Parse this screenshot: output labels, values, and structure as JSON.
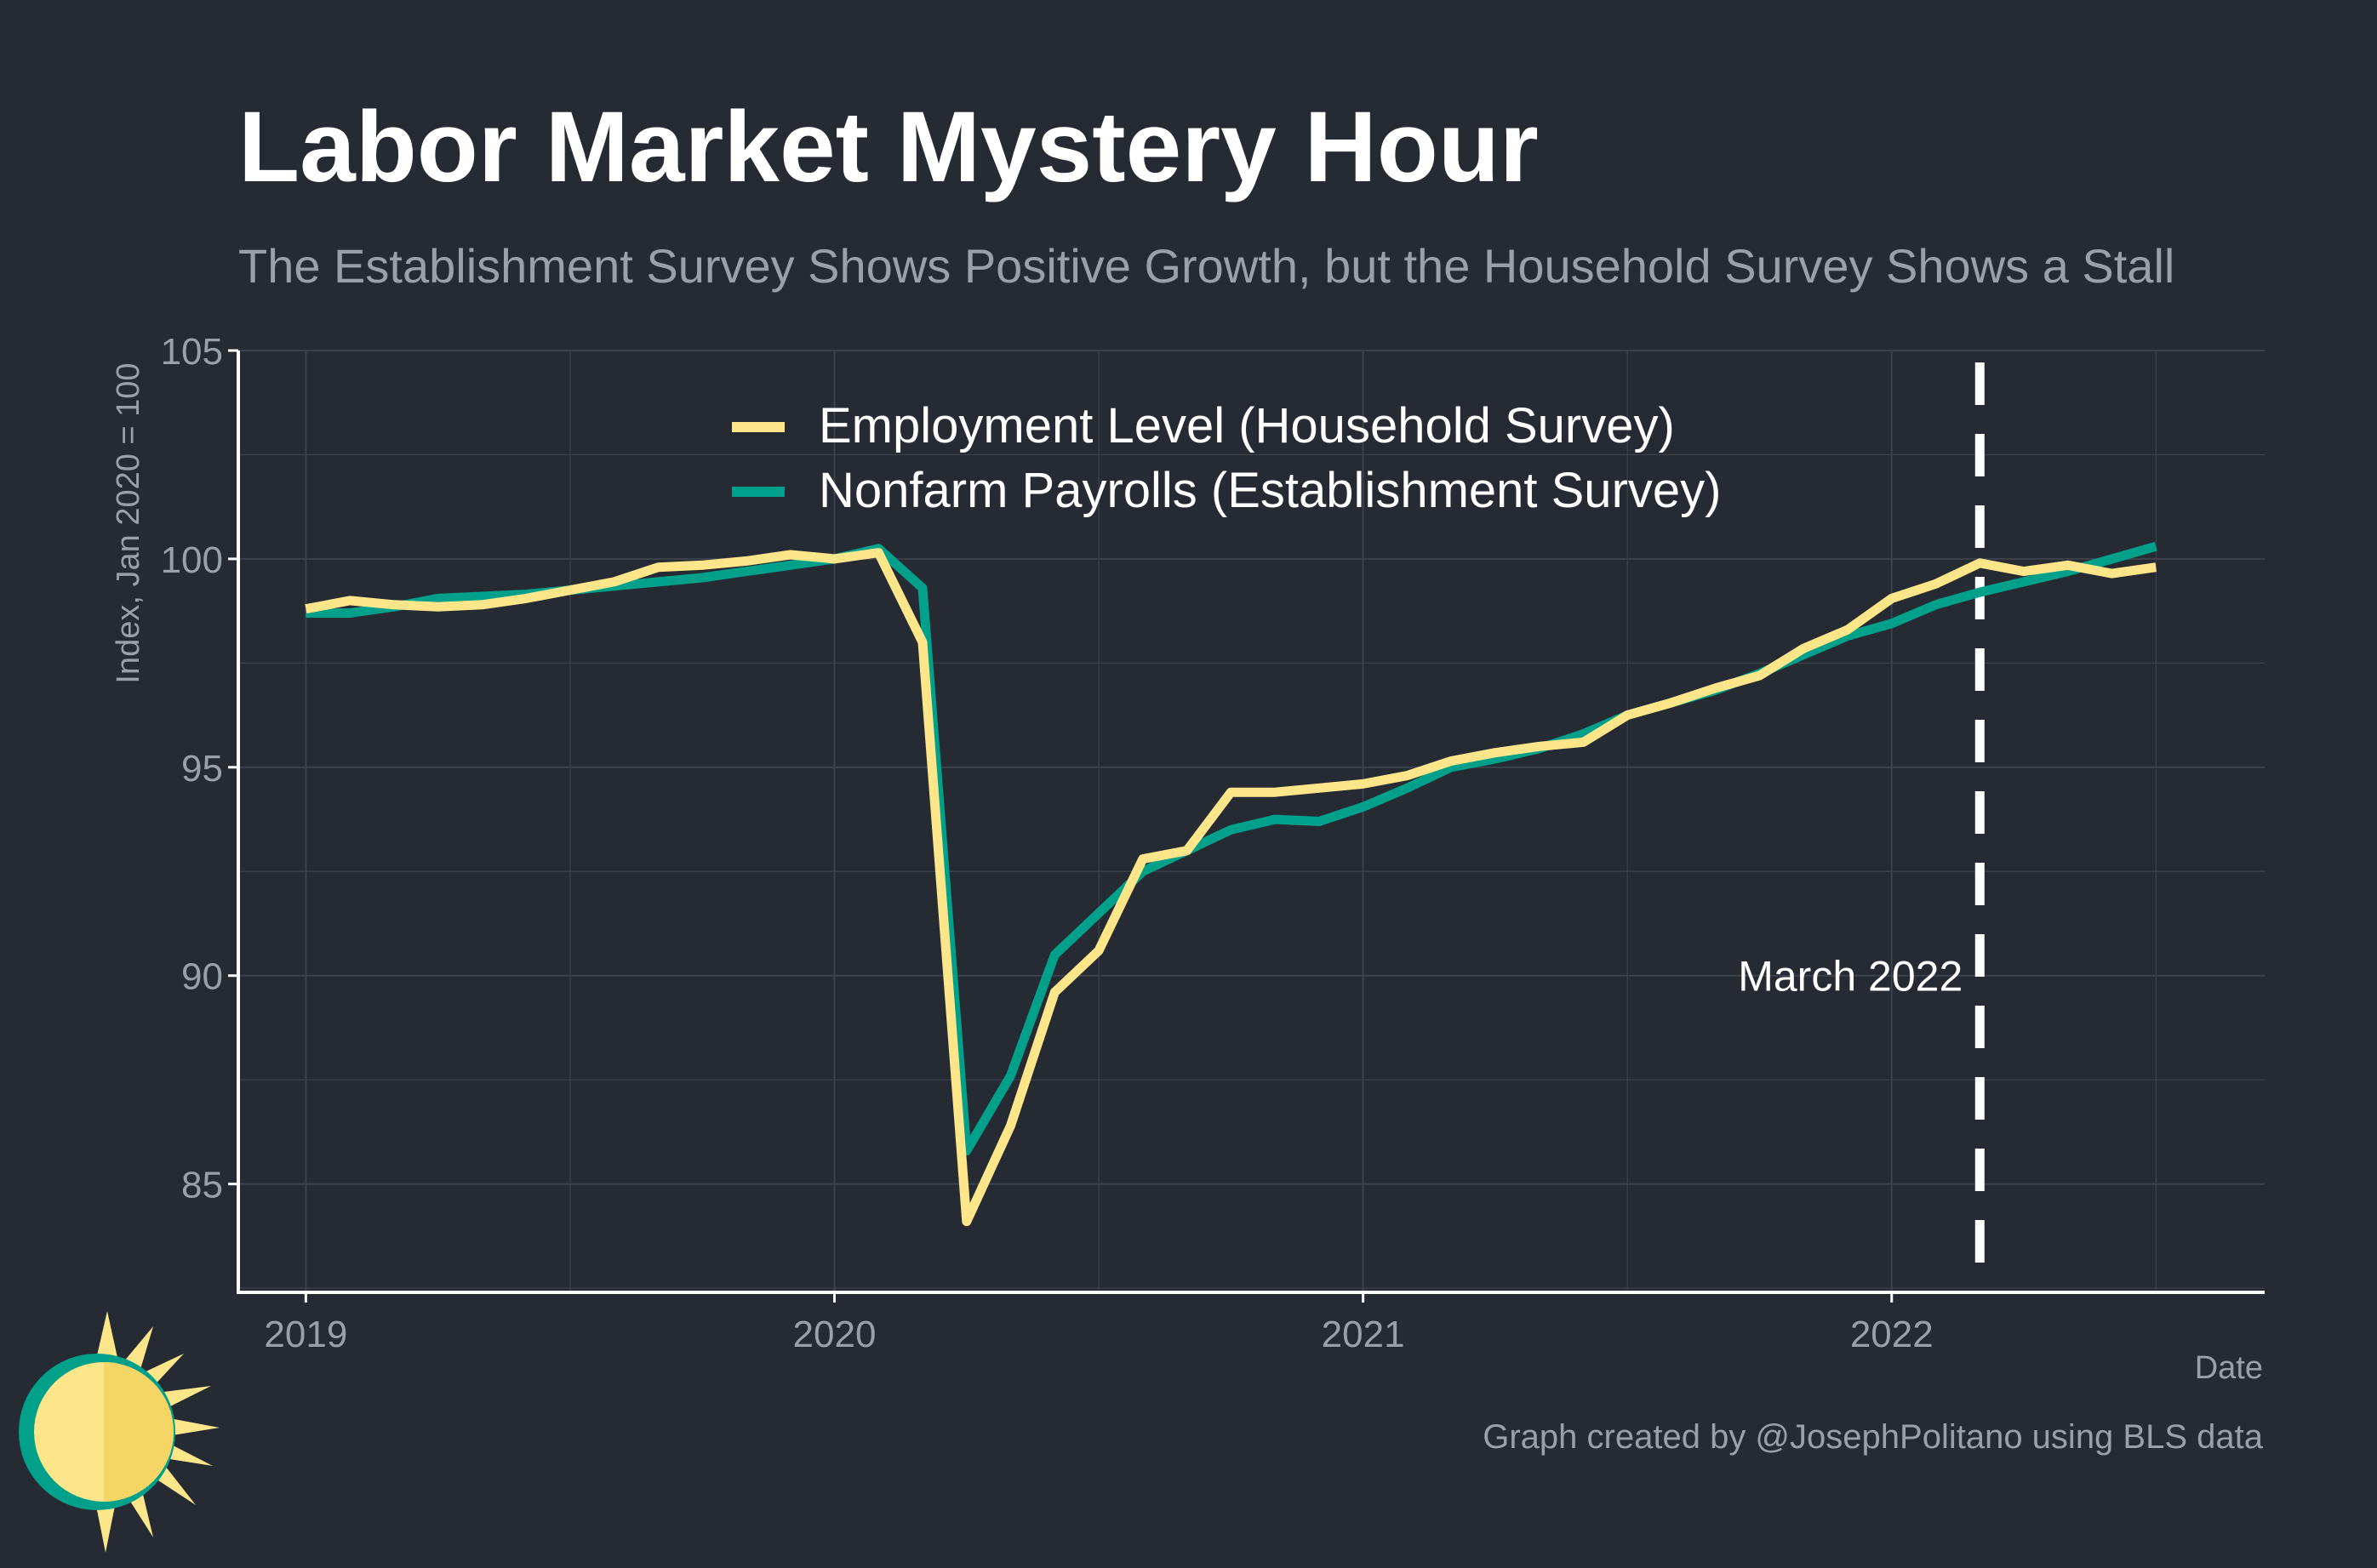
{
  "colors": {
    "background": "#252a33",
    "grid": "#3c424c",
    "axis": "#ffffff",
    "tick_text": "#9aa0a8",
    "title_text": "#ffffff",
    "subtitle_text": "#9aa0a8",
    "household": "#fde68a",
    "establishment": "#00a08b",
    "annotation": "#ffffff",
    "logo_sun": "#fde68a",
    "logo_ring": "#00a08b"
  },
  "icons": {
    "logo": "sun-logo-icon"
  },
  "chart_data": {
    "type": "line",
    "title": "Labor Market Mystery Hour",
    "subtitle": "The Establishment Survey Shows Positive Growth, but the Household Survey Shows a Stall",
    "xlabel": "Date",
    "ylabel": "Index, Jan 2020 = 100",
    "caption": "Graph created by @JosephPolitano using BLS data",
    "x": [
      "2019-01",
      "2019-02",
      "2019-03",
      "2019-04",
      "2019-05",
      "2019-06",
      "2019-07",
      "2019-08",
      "2019-09",
      "2019-10",
      "2019-11",
      "2019-12",
      "2020-01",
      "2020-02",
      "2020-03",
      "2020-04",
      "2020-05",
      "2020-06",
      "2020-07",
      "2020-08",
      "2020-09",
      "2020-10",
      "2020-11",
      "2020-12",
      "2021-01",
      "2021-02",
      "2021-03",
      "2021-04",
      "2021-05",
      "2021-06",
      "2021-07",
      "2021-08",
      "2021-09",
      "2021-10",
      "2021-11",
      "2021-12",
      "2022-01",
      "2022-02",
      "2022-03",
      "2022-04",
      "2022-05",
      "2022-06",
      "2022-07"
    ],
    "xlim": [
      "2018-11-15",
      "2022-09-15"
    ],
    "x_ticks": [
      "2019-01",
      "2020-01",
      "2021-01",
      "2022-01"
    ],
    "x_tick_labels": [
      "2019",
      "2020",
      "2021",
      "2022"
    ],
    "ylim": [
      82.4,
      105
    ],
    "y_ticks": [
      85,
      90,
      95,
      100,
      105
    ],
    "y_tick_labels": [
      "85",
      "90",
      "95",
      "100",
      "105"
    ],
    "grid": true,
    "legend_position": "top-center",
    "series": [
      {
        "name": "Employment Level (Household Survey)",
        "color": "#fde68a",
        "values": [
          98.8,
          99.0,
          98.9,
          98.85,
          98.9,
          99.05,
          99.25,
          99.45,
          99.8,
          99.85,
          99.95,
          100.1,
          100.0,
          100.15,
          98.0,
          84.1,
          86.4,
          89.6,
          90.6,
          92.8,
          93.0,
          94.4,
          94.4,
          94.5,
          94.6,
          94.8,
          95.15,
          95.35,
          95.5,
          95.6,
          96.25,
          96.55,
          96.9,
          97.2,
          97.85,
          98.3,
          99.05,
          99.4,
          99.9,
          99.7,
          99.85,
          99.65,
          99.8
        ]
      },
      {
        "name": "Nonfarm Payrolls (Establishment Survey)",
        "color": "#00a08b",
        "values": [
          98.7,
          98.7,
          98.85,
          99.05,
          99.1,
          99.15,
          99.25,
          99.35,
          99.45,
          99.55,
          99.7,
          99.85,
          100.0,
          100.25,
          99.3,
          85.8,
          87.6,
          90.5,
          91.5,
          92.5,
          93.0,
          93.5,
          93.75,
          93.7,
          94.05,
          94.5,
          95.0,
          95.2,
          95.45,
          95.8,
          96.25,
          96.55,
          96.85,
          97.25,
          97.7,
          98.15,
          98.45,
          98.9,
          99.2,
          99.45,
          99.7,
          100.0,
          100.3
        ]
      }
    ],
    "annotations": [
      {
        "type": "vline",
        "x": "2022-03",
        "label": "March 2022",
        "label_y": 90
      }
    ]
  }
}
